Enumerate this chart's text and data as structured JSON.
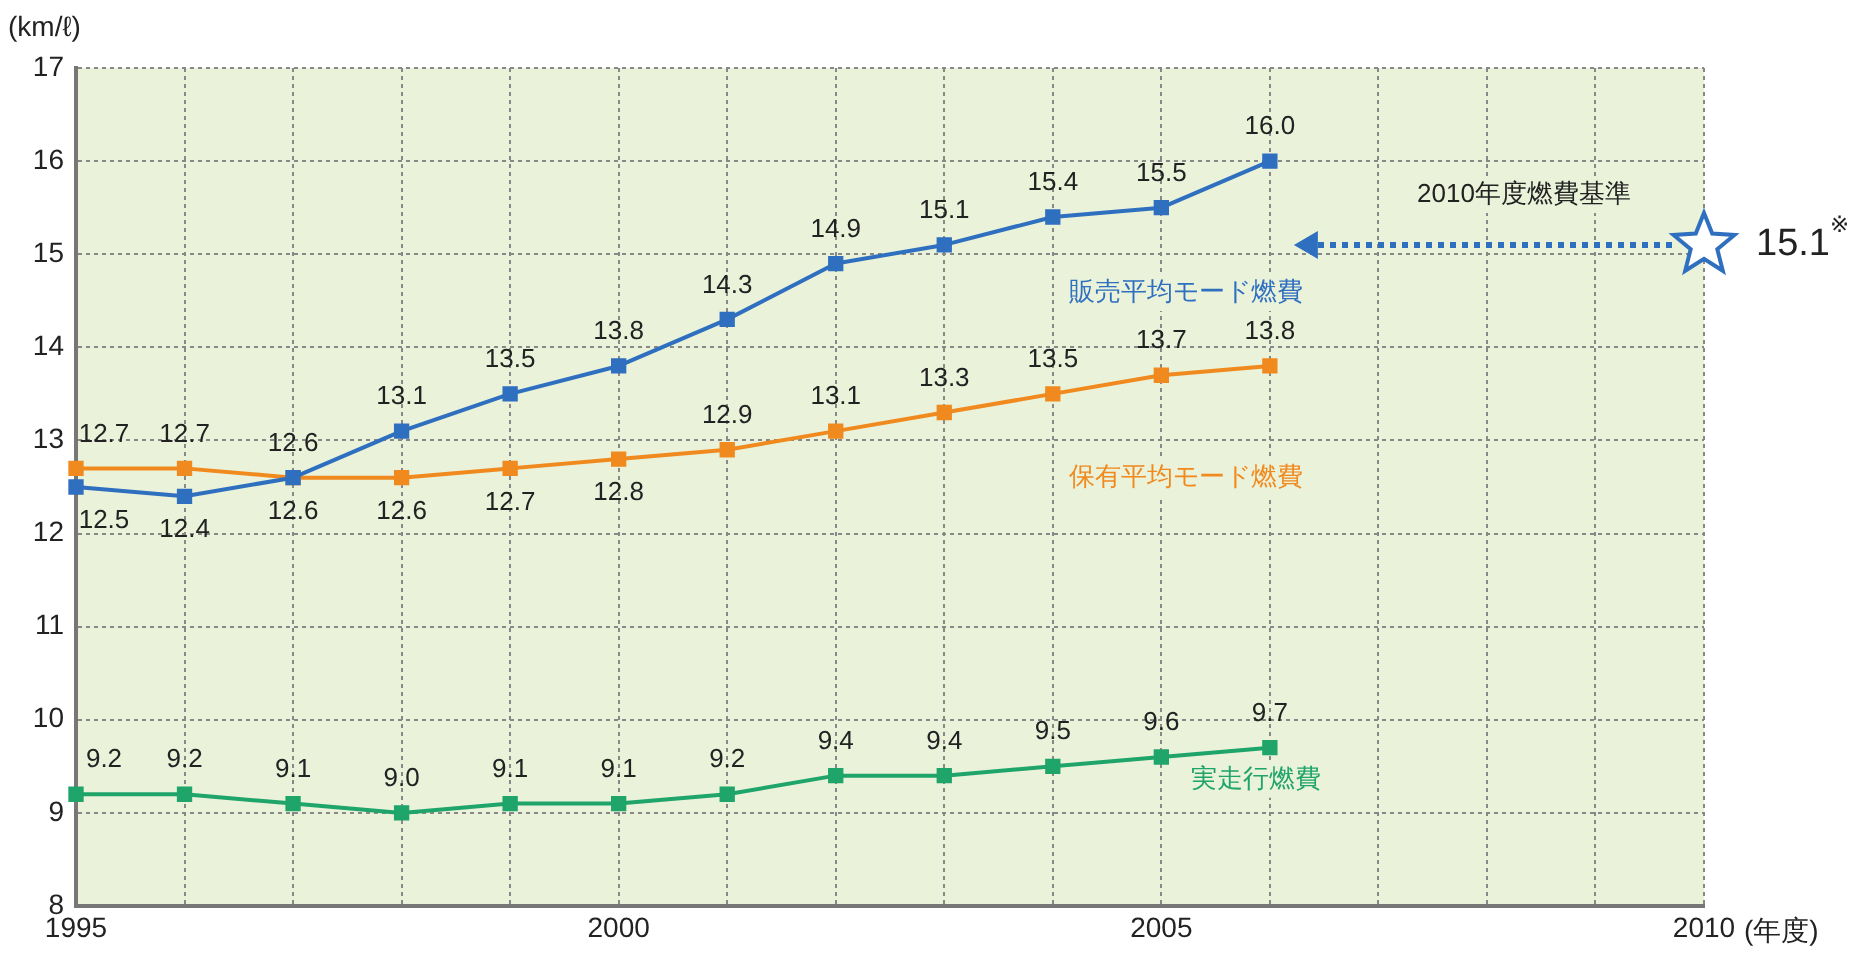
{
  "chart_data": {
    "type": "line",
    "ylabel": "(km/ℓ)",
    "xlabel": "(年度)",
    "x": [
      1995,
      1996,
      1997,
      1998,
      1999,
      2000,
      2001,
      2002,
      2003,
      2004,
      2005,
      2006
    ],
    "xlim": [
      1995,
      2010
    ],
    "xticks": [
      1995,
      {
        "value": 1996,
        "label": null
      },
      {
        "value": 1997,
        "label": null
      },
      {
        "value": 1998,
        "label": null
      },
      {
        "value": 1999,
        "label": null
      },
      2000,
      {
        "value": 2001,
        "label": null
      },
      {
        "value": 2002,
        "label": null
      },
      {
        "value": 2003,
        "label": null
      },
      {
        "value": 2004,
        "label": null
      },
      2005,
      {
        "value": 2006,
        "label": null
      },
      {
        "value": 2007,
        "label": null
      },
      {
        "value": 2008,
        "label": null
      },
      {
        "value": 2009,
        "label": null
      },
      2010
    ],
    "ylim": [
      8,
      17
    ],
    "yticks": [
      8,
      9,
      10,
      11,
      12,
      13,
      14,
      15,
      16,
      17
    ],
    "grid": true,
    "marker": "square",
    "line_style": "solid",
    "series": [
      {
        "name": "販売平均モード燃費",
        "color": "#2f6fbf",
        "values": [
          12.5,
          12.4,
          12.6,
          13.1,
          13.5,
          13.8,
          14.3,
          14.9,
          15.1,
          15.4,
          15.5,
          16.0
        ],
        "value_labels": [
          "12.5",
          "12.4",
          "12.6",
          "13.1",
          "13.5",
          "13.8",
          "14.3",
          "14.9",
          "15.1",
          "15.4",
          "15.5",
          "16.0"
        ]
      },
      {
        "name": "保有平均モード燃費",
        "color": "#f08a1e",
        "values": [
          12.7,
          12.7,
          12.6,
          12.6,
          12.7,
          12.8,
          12.9,
          13.1,
          13.3,
          13.5,
          13.7,
          13.8
        ],
        "value_labels": [
          "12.7",
          "12.7",
          "12.6",
          "12.6",
          "12.7",
          "12.8",
          "12.9",
          "13.1",
          "13.3",
          "13.5",
          "13.7",
          "13.8"
        ]
      },
      {
        "name": "実走行燃費",
        "color": "#1fa46a",
        "values": [
          9.2,
          9.2,
          9.1,
          9.0,
          9.1,
          9.1,
          9.2,
          9.4,
          9.4,
          9.5,
          9.6,
          9.7
        ],
        "value_labels": [
          "9.2",
          "9.2",
          "9.1",
          "9.0",
          "9.1",
          "9.1",
          "9.2",
          "9.4",
          "9.4",
          "9.5",
          "9.6",
          "9.7"
        ]
      },
      {
        "name": "2010年度燃費基準",
        "type": "scatter",
        "marker": "star",
        "color": "#2f6fbf",
        "x": [
          2010
        ],
        "values": [
          15.1
        ],
        "value_labels": [
          "15.1$^{※}$"
        ]
      }
    ]
  }
}
